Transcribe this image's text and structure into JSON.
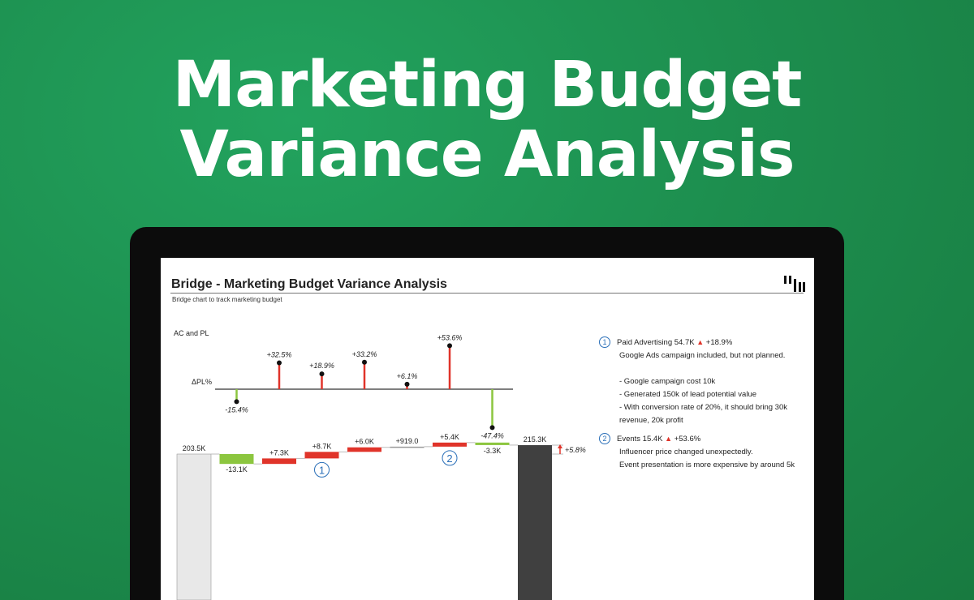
{
  "hero": {
    "line1": "Marketing Budget",
    "line2": "Variance Analysis"
  },
  "report": {
    "title": "Bridge - Marketing Budget Variance Analysis",
    "subtitle": "Bridge chart to track marketing budget"
  },
  "chart_data": {
    "type": "waterfall",
    "series_label": "AC and PL",
    "delta_label": "ΔPL%",
    "start": {
      "value": 203.5,
      "label": "203.5K"
    },
    "end": {
      "value": 215.3,
      "label": "215.3K",
      "delta_pct_label": "+5.8%"
    },
    "steps": [
      {
        "value": -13.1,
        "label": "-13.1K",
        "pct": -15.4,
        "pct_label": "-15.4%"
      },
      {
        "value": 7.3,
        "label": "+7.3K",
        "pct": 32.5,
        "pct_label": "+32.5%"
      },
      {
        "value": 8.7,
        "label": "+8.7K",
        "pct": 18.9,
        "pct_label": "+18.9%",
        "marker": "1"
      },
      {
        "value": 6.0,
        "label": "+6.0K",
        "pct": 33.2,
        "pct_label": "+33.2%"
      },
      {
        "value": 0.919,
        "label": "+919.0",
        "pct": 6.1,
        "pct_label": "+6.1%"
      },
      {
        "value": 5.4,
        "label": "+5.4K",
        "pct": 53.6,
        "pct_label": "+53.6%",
        "marker": "2"
      },
      {
        "value": -3.3,
        "label": "-3.3K",
        "pct": -47.4,
        "pct_label": "-47.4%"
      }
    ],
    "colors": {
      "increase": "#e0342a",
      "decrease": "#8cc63f",
      "start": "#e8e8e8",
      "end": "#404040",
      "marker": "#2a6fb8"
    }
  },
  "notes": [
    {
      "num": "1",
      "head": "Paid Advertising 54.7K",
      "pct": "+18.9%",
      "lines": [
        "Google Ads campaign included, but not planned.",
        "",
        "- Google campaign cost 10k",
        "- Generated 150k of lead potential value",
        "- With conversion rate of 20%, it should bring 30k",
        "revenue, 20k profit"
      ]
    },
    {
      "num": "2",
      "head": "Events 15.4K",
      "pct": "+53.6%",
      "lines": [
        "Influencer price changed unexpectedly.",
        "Event presentation is more expensive by around 5k"
      ]
    }
  ]
}
